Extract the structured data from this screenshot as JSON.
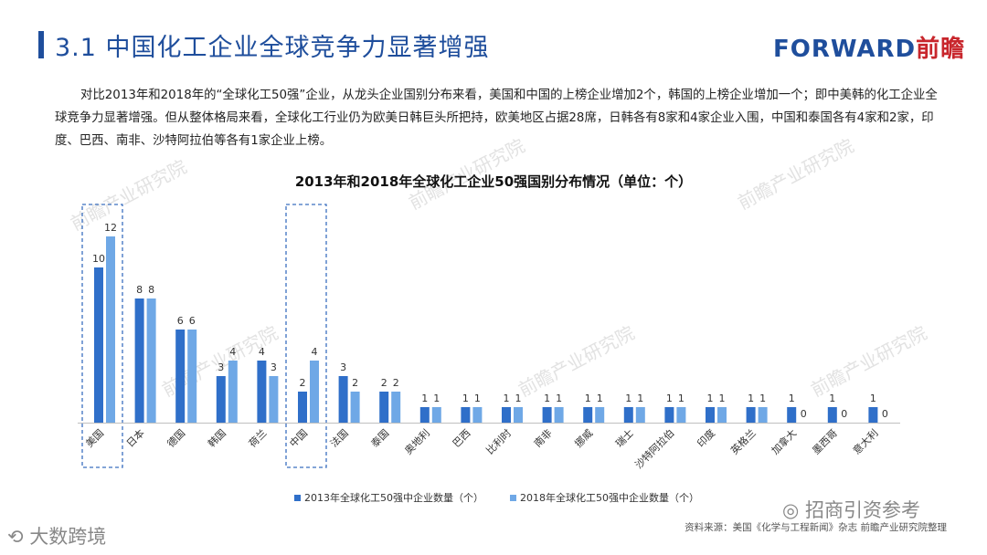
{
  "header": {
    "title": "3.1  中国化工企业全球竞争力显著增强",
    "brand_en": "FORWARD",
    "brand_cn": "前瞻"
  },
  "intro": "对比2013年和2018年的“全球化工50强”企业，从龙头企业国别分布来看，美国和中国的上榜企业增加2个，韩国的上榜企业增加一个；即中美韩的化工企业全球竞争力显著增强。但从整体格局来看，全球化工行业仍为欧美日韩巨头所把持，欧美地区占据28席，日韩各有8家和4家企业入围，中国和泰国各有4家和2家，印度、巴西、南非、沙特阿拉伯等各有1家企业上榜。",
  "source": "资料来源：美国《化学与工程新闻》杂志   前瞻产业研究院整理",
  "watermark_text": "前瞻产业研究院",
  "overlay": {
    "wechat": "招商引资参考",
    "dashu": "大数跨境"
  },
  "colors": {
    "series2013": "#2f6fc9",
    "series2018": "#6fa8e6",
    "title": "#1f4e9c",
    "brand_red": "#c8262c",
    "highlight_box": "#3b6fbf"
  },
  "chart_data": {
    "type": "bar",
    "title": "2013年和2018年全球化工企业50强国别分布情况（单位：个）",
    "categories": [
      "美国",
      "日本",
      "德国",
      "韩国",
      "荷兰",
      "中国",
      "法国",
      "泰国",
      "奥地利",
      "巴西",
      "比利时",
      "南非",
      "挪威",
      "瑞士",
      "沙特阿拉伯",
      "印度",
      "英格兰",
      "加拿大",
      "墨西哥",
      "意大利"
    ],
    "series": [
      {
        "name": "2013年全球化工50强中企业数量（个）",
        "values": [
          10,
          8,
          6,
          3,
          4,
          2,
          3,
          2,
          1,
          1,
          1,
          1,
          1,
          1,
          1,
          1,
          1,
          1,
          1,
          1
        ]
      },
      {
        "name": "2018年全球化工50强中企业数量（个）",
        "values": [
          12,
          8,
          6,
          4,
          3,
          4,
          2,
          2,
          1,
          1,
          1,
          1,
          1,
          1,
          1,
          1,
          1,
          0,
          0,
          0
        ]
      }
    ],
    "highlighted": [
      "美国",
      "中国"
    ],
    "ylim": [
      0,
      13
    ],
    "grid": false,
    "legend_position": "bottom"
  }
}
